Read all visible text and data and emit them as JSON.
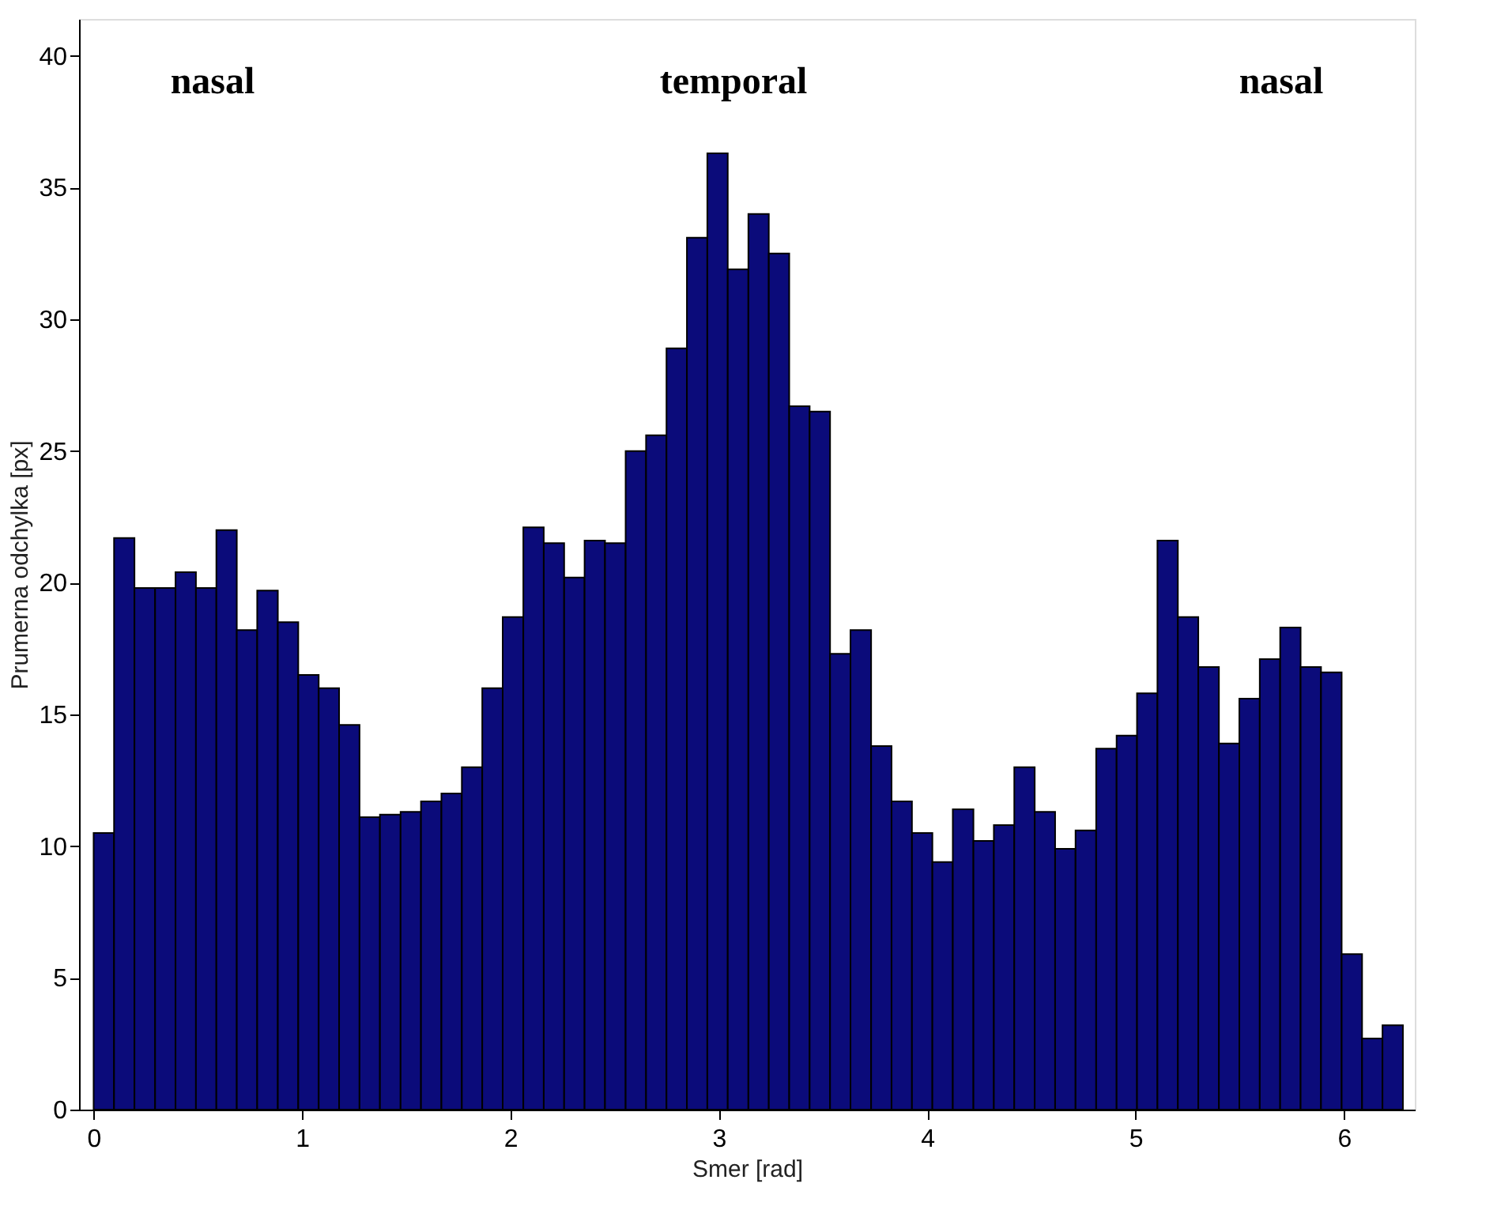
{
  "chart_data": {
    "type": "histogram",
    "xlabel": "Smer [rad]",
    "ylabel": "Prumerna odchylka [px]",
    "color": "#0b0b7a",
    "bins": [
      0,
      0.098,
      0.196,
      0.295,
      0.393,
      0.491,
      0.589,
      0.687,
      0.785,
      0.884,
      0.982,
      1.08,
      1.178,
      1.276,
      1.374,
      1.473,
      1.571,
      1.669,
      1.767,
      1.865,
      1.963,
      2.062,
      2.16,
      2.258,
      2.356,
      2.454,
      2.553,
      2.651,
      2.749,
      2.847,
      2.945,
      3.043,
      3.142,
      3.24,
      3.338,
      3.436,
      3.534,
      3.632,
      3.731,
      3.829,
      3.927,
      4.025,
      4.123,
      4.222,
      4.32,
      4.418,
      4.516,
      4.614,
      4.712,
      4.811,
      4.909,
      5.007,
      5.105,
      5.203,
      5.301,
      5.4,
      5.498,
      5.596,
      5.694,
      5.792,
      5.89,
      5.989,
      6.087,
      6.185,
      6.283
    ],
    "values": [
      10.5,
      21.7,
      19.8,
      19.8,
      20.4,
      19.8,
      22.0,
      18.2,
      19.7,
      18.5,
      16.5,
      16.0,
      14.6,
      11.1,
      11.2,
      11.3,
      11.7,
      12.0,
      13.0,
      16.0,
      18.7,
      22.1,
      21.5,
      20.2,
      21.6,
      21.5,
      25.0,
      25.6,
      28.9,
      33.1,
      36.3,
      31.9,
      34.0,
      32.5,
      26.7,
      26.5,
      17.3,
      18.2,
      13.8,
      11.7,
      10.5,
      9.4,
      11.4,
      10.2,
      10.8,
      13.0,
      11.3,
      9.9,
      10.6,
      13.7,
      14.2,
      15.8,
      21.6,
      18.7,
      16.8,
      13.9,
      15.6,
      17.1,
      18.3,
      16.8,
      16.6,
      5.9,
      2.7,
      3.2
    ],
    "xlim": [
      -0.07,
      6.34
    ],
    "ylim": [
      0,
      41.4
    ],
    "xticks": [
      0,
      1,
      2,
      3,
      4,
      5,
      6
    ],
    "yticks": [
      0,
      5,
      10,
      15,
      20,
      25,
      30,
      35,
      40
    ],
    "grid": false,
    "annotations": [
      "nasal",
      "temporal",
      "nasal"
    ]
  }
}
